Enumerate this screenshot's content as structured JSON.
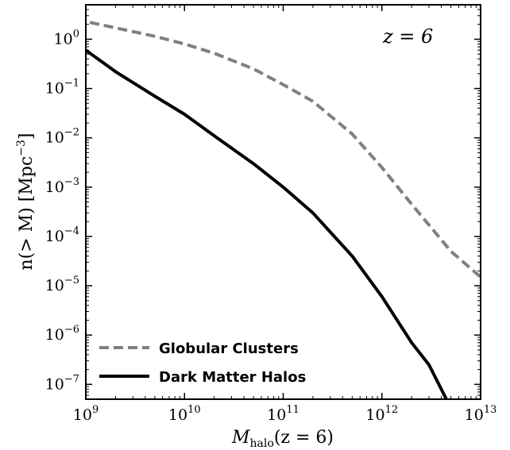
{
  "chart_data": {
    "type": "line",
    "xlabel": "M",
    "xlabel_sub": "halo",
    "xlabel_suffix": "(z = 6)",
    "ylabel": "n(> M) [Mpc",
    "ylabel_sup": "−3",
    "ylabel_suffix": "]",
    "xscale": "log",
    "yscale": "log",
    "xlim": [
      1000000000.0,
      10000000000000.0
    ],
    "ylim": [
      5e-08,
      5
    ],
    "x_ticks": [
      {
        "base": "10",
        "exp": "9",
        "value": 1000000000.0
      },
      {
        "base": "10",
        "exp": "10",
        "value": 10000000000.0
      },
      {
        "base": "10",
        "exp": "11",
        "value": 100000000000.0
      },
      {
        "base": "10",
        "exp": "12",
        "value": 1000000000000.0
      },
      {
        "base": "10",
        "exp": "13",
        "value": 10000000000000.0
      }
    ],
    "y_ticks": [
      {
        "base": "10",
        "exp": "0",
        "value": 1
      },
      {
        "base": "10",
        "exp": "−1",
        "value": 0.1
      },
      {
        "base": "10",
        "exp": "−2",
        "value": 0.01
      },
      {
        "base": "10",
        "exp": "−3",
        "value": 0.001
      },
      {
        "base": "10",
        "exp": "−4",
        "value": 0.0001
      },
      {
        "base": "10",
        "exp": "−5",
        "value": 1e-05
      },
      {
        "base": "10",
        "exp": "−6",
        "value": 1e-06
      },
      {
        "base": "10",
        "exp": "−7",
        "value": 1e-07
      }
    ],
    "annotation": "z = 6",
    "legend_position": "lower-left",
    "series": [
      {
        "name": "Globular Clusters",
        "color": "#808080",
        "style": "dashed",
        "x": [
          1100000000.0,
          2000000000.0,
          5000000000.0,
          10000000000.0,
          20000000000.0,
          50000000000.0,
          100000000000.0,
          200000000000.0,
          500000000000.0,
          1000000000000.0,
          2000000000000.0,
          5000000000000.0,
          10000000000000.0
        ],
        "y": [
          2.2,
          1.7,
          1.15,
          0.8,
          0.52,
          0.25,
          0.12,
          0.055,
          0.012,
          0.0025,
          0.00045,
          5e-05,
          1.5e-05
        ]
      },
      {
        "name": "Dark Matter Halos",
        "color": "#000000",
        "style": "solid",
        "x": [
          1000000000.0,
          2000000000.0,
          5000000000.0,
          10000000000.0,
          20000000000.0,
          50000000000.0,
          100000000000.0,
          200000000000.0,
          500000000000.0,
          1000000000000.0,
          2000000000000.0,
          3000000000000.0,
          4500000000000.0
        ],
        "y": [
          0.6,
          0.22,
          0.07,
          0.03,
          0.011,
          0.003,
          0.001,
          0.0003,
          4e-05,
          6e-06,
          7e-07,
          2.5e-07,
          5e-08
        ]
      }
    ]
  }
}
